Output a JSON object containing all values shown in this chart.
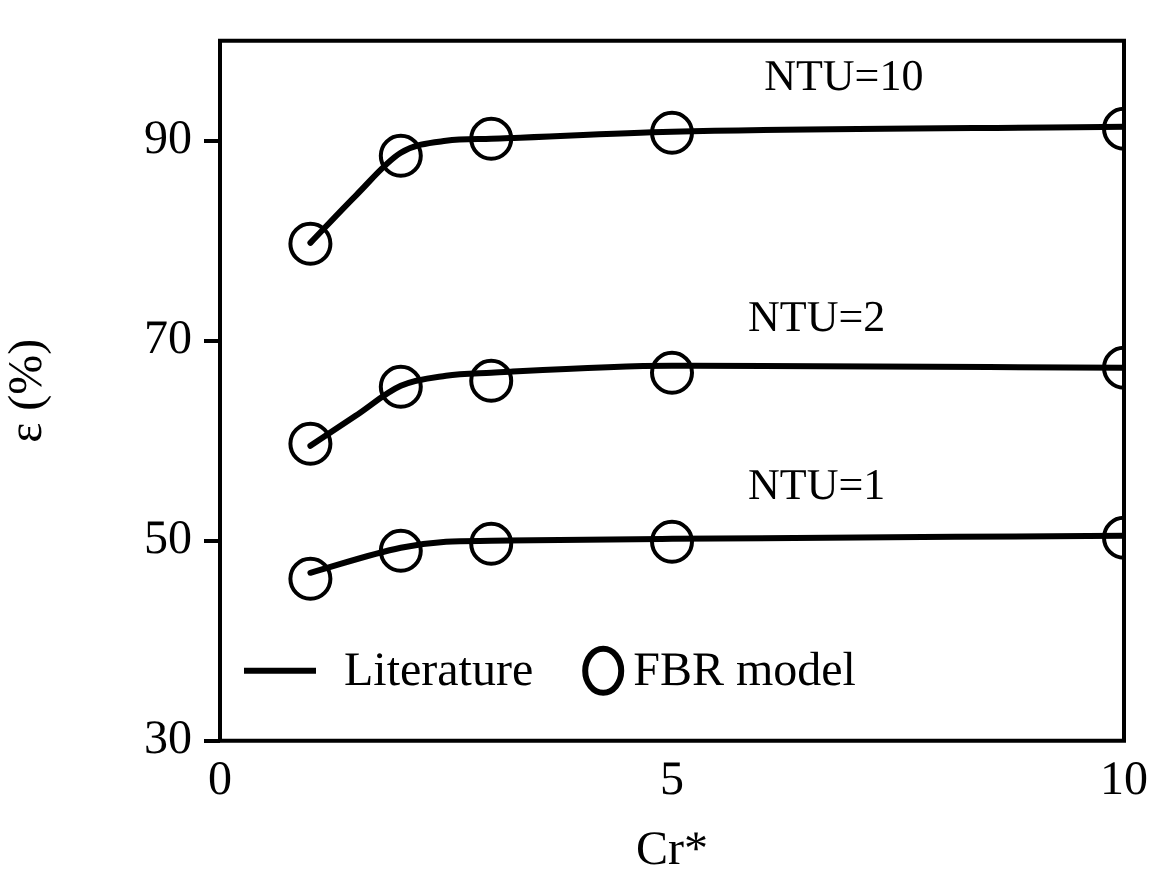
{
  "chart_data": {
    "type": "line",
    "xlabel": "Cr*",
    "ylabel": "ε (%)",
    "xlim": [
      0,
      10
    ],
    "xticks": [
      0,
      5,
      10
    ],
    "ylim": [
      30,
      100
    ],
    "yticks": [
      30,
      50,
      70,
      90
    ],
    "grid": false,
    "legend": "bottom left",
    "series": [
      {
        "name": "Literature",
        "color": "#000000",
        "marker": "none",
        "x": [
          1,
          1.5,
          2,
          2.5,
          3,
          5,
          10
        ],
        "values": [
          79.8,
          84.5,
          88.8,
          90,
          90.2,
          90.9,
          91.4
        ]
      },
      {
        "color": "#000000",
        "marker": "none",
        "x": [
          1,
          1.5,
          2,
          2.5,
          3,
          5,
          10
        ],
        "values": [
          59.5,
          62.5,
          65.5,
          66.5,
          66.8,
          67.5,
          67.3
        ]
      },
      {
        "color": "#000000",
        "marker": "none",
        "x": [
          1,
          2,
          2.5,
          3,
          5,
          10
        ],
        "values": [
          46.8,
          49.3,
          49.9,
          50,
          50.2,
          50.5
        ]
      },
      {
        "name": "FBR model",
        "type": "scatter",
        "color": "#000000",
        "marker": "circle",
        "x": [
          1,
          2,
          3,
          5,
          10
        ],
        "values": [
          79.7,
          88.5,
          90.2,
          90.8,
          91.2
        ]
      },
      {
        "type": "scatter",
        "color": "#000000",
        "marker": "circle",
        "x": [
          1,
          2,
          3,
          5,
          10
        ],
        "values": [
          59.7,
          65.4,
          66,
          66.8,
          67.3
        ]
      },
      {
        "type": "scatter",
        "color": "#000000",
        "marker": "circle",
        "x": [
          1,
          2,
          3,
          5,
          10
        ],
        "values": [
          46.2,
          49,
          49.7,
          49.9,
          50.3
        ]
      }
    ],
    "annotations": [
      "NTU=10",
      "NTU=2",
      "NTU=1"
    ]
  }
}
